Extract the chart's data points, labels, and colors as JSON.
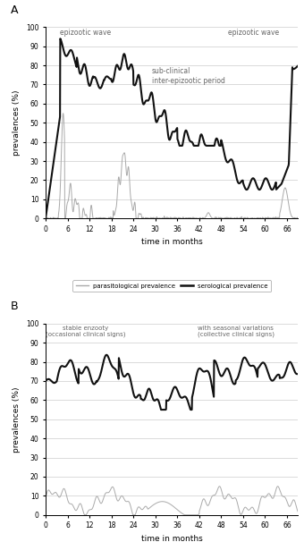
{
  "fig_label_A": "A",
  "fig_label_B": "B",
  "ylabel_A": "prevalences (%)",
  "ylabel_B": "prevalences (%)",
  "xlabel": "time in months",
  "ylim": [
    0,
    100
  ],
  "yticks": [
    0,
    10,
    20,
    30,
    40,
    50,
    60,
    70,
    80,
    90,
    100
  ],
  "xticks": [
    0,
    6,
    12,
    18,
    24,
    30,
    36,
    42,
    48,
    54,
    60,
    66
  ],
  "annotation_A1": "epizootic wave",
  "annotation_A2": "epizootic wave",
  "annotation_A3": "sub-clinical\ninter-epizootic period",
  "annotation_B1": "stable enzooty\n(occasional clinical signs)",
  "annotation_B2": "with seasonal variations\n(collective clinical signs)",
  "legend_para": "parasitological prevalence",
  "legend_sero": "serological prevalence",
  "para_color": "#aaaaaa",
  "sero_color": "#111111",
  "background_color": "#ffffff",
  "grid_color": "#cccccc"
}
